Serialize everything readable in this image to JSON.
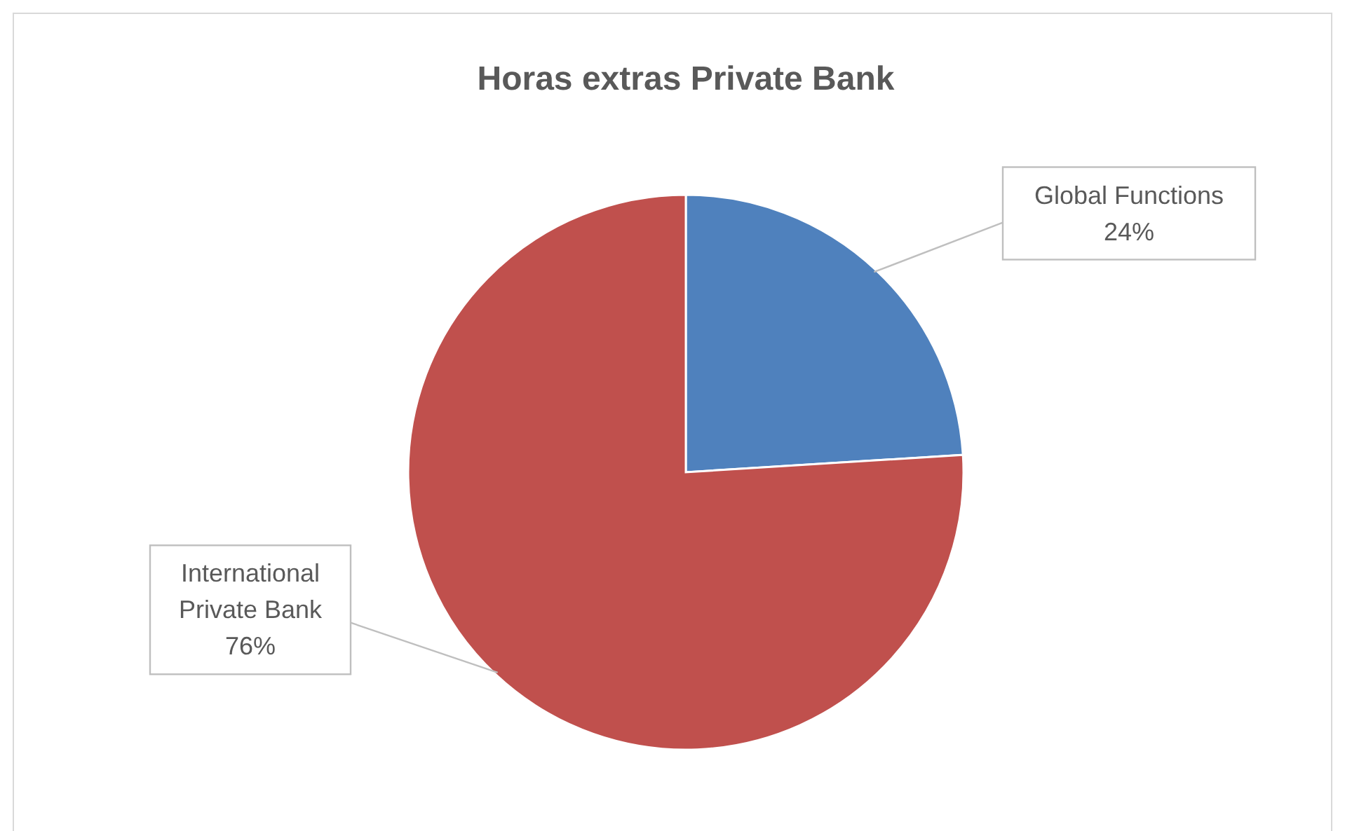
{
  "chart_data": {
    "type": "pie",
    "title": "Horas extras Private Bank",
    "categories": [
      "Global Functions",
      "International Private Bank"
    ],
    "values": [
      24,
      76
    ],
    "value_labels": [
      "24%",
      "76%"
    ],
    "colors": [
      "#4f81bd",
      "#c0504d"
    ]
  }
}
